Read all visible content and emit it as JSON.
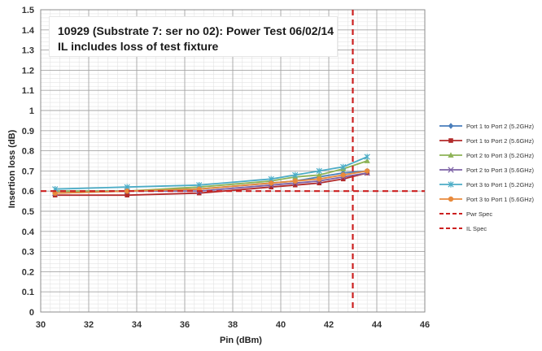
{
  "chart_data": {
    "type": "line",
    "title": "",
    "annotation": {
      "line1": "10929 (Substrate 7: ser no 02): Power Test 06/02/14",
      "line2": "IL includes loss of test fixture"
    },
    "xlabel": "Pin (dBm)",
    "ylabel": "Insertion loss (dB)",
    "xlim": [
      30,
      46
    ],
    "ylim": [
      0,
      1.5
    ],
    "xticks": [
      30,
      32,
      34,
      36,
      38,
      40,
      42,
      44,
      46
    ],
    "yticks": [
      0,
      0.1,
      0.2,
      0.3,
      0.4,
      0.5,
      0.6,
      0.7,
      0.8,
      0.9,
      1,
      1.1,
      1.2,
      1.3,
      1.4,
      1.5
    ],
    "grid": true,
    "legend_position": "right",
    "series": [
      {
        "name": "Port 1 to Port 2 (5.2GHz)",
        "color": "#4a7ebb",
        "marker": "diamond",
        "x": [
          30.6,
          33.6,
          36.6,
          39.6,
          40.6,
          41.6,
          42.6,
          43.6
        ],
        "y": [
          0.6,
          0.6,
          0.61,
          0.64,
          0.65,
          0.67,
          0.69,
          0.7
        ]
      },
      {
        "name": "Port 1 to Port 2 (5.6GHz)",
        "color": "#b22a2a",
        "marker": "square",
        "x": [
          30.6,
          33.6,
          36.6,
          39.6,
          40.6,
          41.6,
          42.6,
          43.6
        ],
        "y": [
          0.58,
          0.58,
          0.59,
          0.62,
          0.63,
          0.64,
          0.66,
          0.69
        ]
      },
      {
        "name": "Port 2 to Port 3 (5.2GHz)",
        "color": "#8db356",
        "marker": "triangle",
        "x": [
          30.6,
          33.6,
          36.6,
          39.6,
          40.6,
          41.6,
          42.6,
          43.6
        ],
        "y": [
          0.6,
          0.6,
          0.62,
          0.65,
          0.67,
          0.68,
          0.71,
          0.75
        ]
      },
      {
        "name": "Port 2 to Port 3 (5.6GHz)",
        "color": "#7d62a6",
        "marker": "x",
        "x": [
          30.6,
          33.6,
          36.6,
          39.6,
          40.6,
          41.6,
          42.6,
          43.6
        ],
        "y": [
          0.59,
          0.6,
          0.6,
          0.63,
          0.64,
          0.65,
          0.67,
          0.69
        ]
      },
      {
        "name": "Port 3 to Port 1 (5.2GHz)",
        "color": "#4bacc6",
        "marker": "star",
        "x": [
          30.6,
          33.6,
          36.6,
          39.6,
          40.6,
          41.6,
          42.6,
          43.6
        ],
        "y": [
          0.61,
          0.62,
          0.63,
          0.66,
          0.68,
          0.7,
          0.72,
          0.77
        ]
      },
      {
        "name": "Port 3 to Port 1 (5.6GHz)",
        "color": "#e88a3c",
        "marker": "circle",
        "x": [
          30.6,
          33.6,
          36.6,
          39.6,
          40.6,
          41.6,
          42.6,
          43.6
        ],
        "y": [
          0.59,
          0.6,
          0.61,
          0.64,
          0.65,
          0.66,
          0.68,
          0.7
        ]
      }
    ],
    "reference_lines": [
      {
        "name": "Pwr Spec",
        "orientation": "vertical",
        "x": 43,
        "color": "#cc2020",
        "style": "dashed"
      },
      {
        "name": "IL Spec",
        "orientation": "horizontal",
        "y": 0.6,
        "color": "#cc2020",
        "style": "dashed"
      }
    ]
  }
}
